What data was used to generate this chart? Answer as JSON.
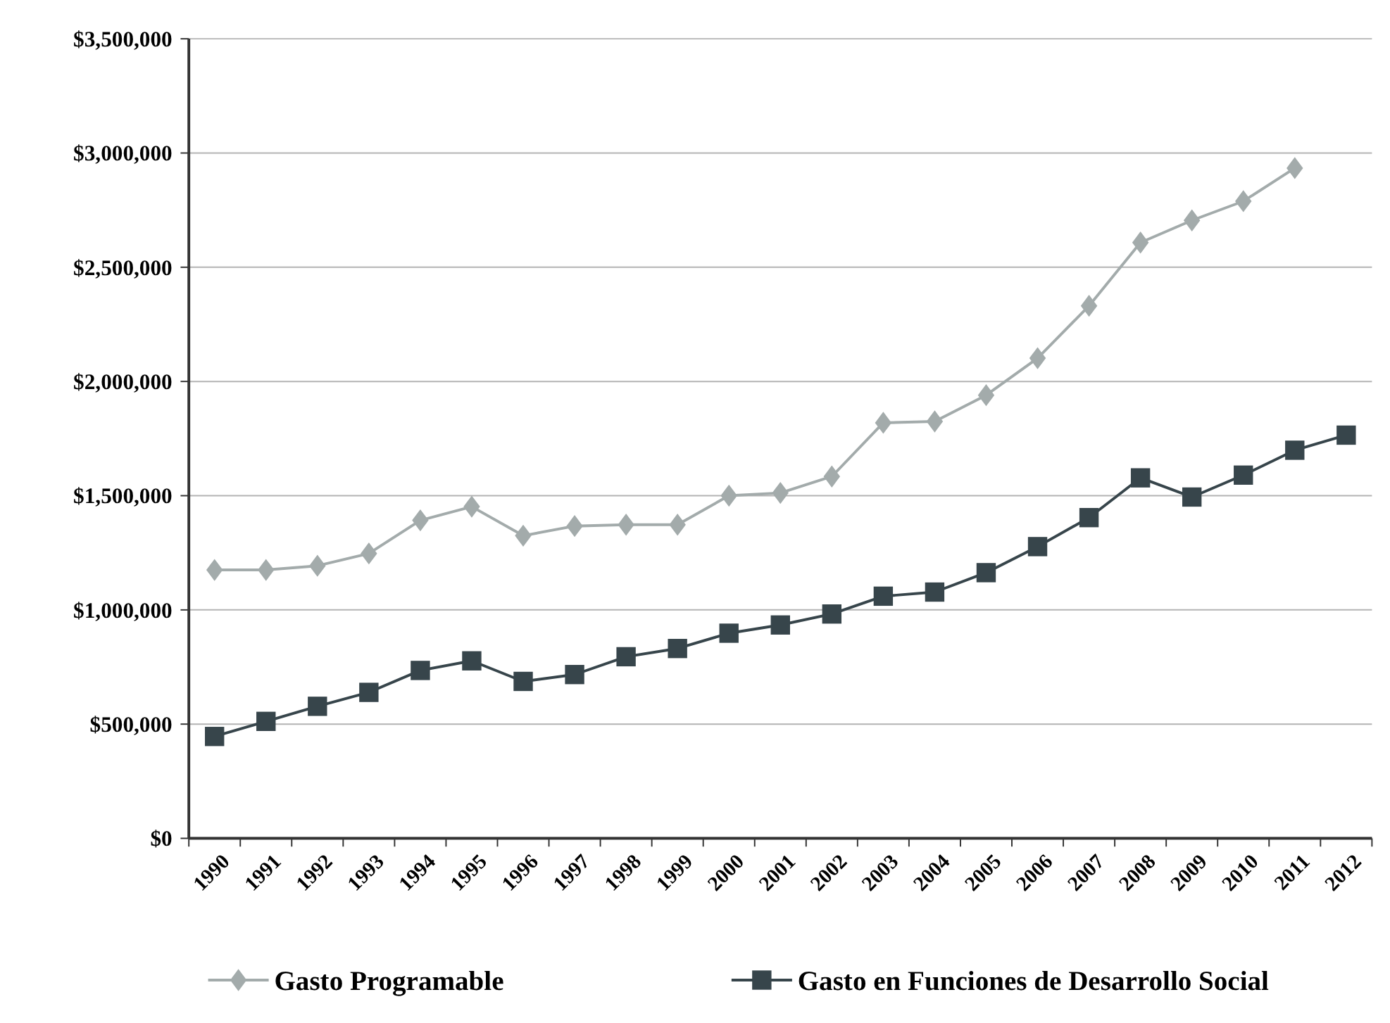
{
  "chart_data": {
    "type": "line",
    "categories": [
      "1990",
      "1991",
      "1992",
      "1993",
      "1994",
      "1995",
      "1996",
      "1997",
      "1998",
      "1999",
      "2000",
      "2001",
      "2002",
      "2003",
      "2004",
      "2005",
      "2006",
      "2007",
      "2008",
      "2009",
      "2010",
      "2011",
      "2012"
    ],
    "series": [
      {
        "name": "Gasto Programable",
        "color": "#a3abab",
        "marker": "diamond",
        "values": [
          1175000,
          1175000,
          1193000,
          1247000,
          1392000,
          1452000,
          1325000,
          1367000,
          1373000,
          1373000,
          1500000,
          1512000,
          1584000,
          1819000,
          1825000,
          1940000,
          2102000,
          2331000,
          2608000,
          2705000,
          2789000,
          2934000,
          null
        ]
      },
      {
        "name": "Gasto en Funciones de Desarrollo Social",
        "color": "#37454b",
        "marker": "square",
        "values": [
          446000,
          512000,
          578000,
          639000,
          735000,
          777000,
          687000,
          717000,
          795000,
          831000,
          898000,
          934000,
          982000,
          1060000,
          1078000,
          1163000,
          1277000,
          1404000,
          1578000,
          1494000,
          1590000,
          1699000,
          1765000
        ]
      }
    ],
    "ylim": [
      0,
      3500000
    ],
    "yticks": [
      {
        "value": 0,
        "label": "$0"
      },
      {
        "value": 500000,
        "label": "$500,000"
      },
      {
        "value": 1000000,
        "label": "$1,000,000"
      },
      {
        "value": 1500000,
        "label": "$1,500,000"
      },
      {
        "value": 2000000,
        "label": "$2,000,000"
      },
      {
        "value": 2500000,
        "label": "$2,500,000"
      },
      {
        "value": 3000000,
        "label": "$3,000,000"
      },
      {
        "value": 3500000,
        "label": "$3,500,000"
      }
    ],
    "grid": "y",
    "legend": "bottom",
    "line_style": "solid"
  }
}
